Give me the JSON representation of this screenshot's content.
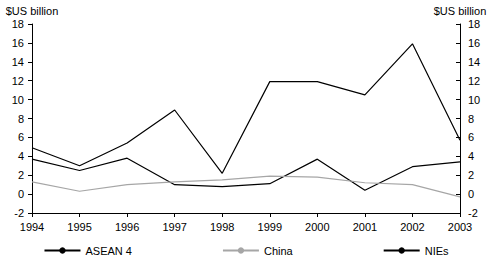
{
  "chart_data": {
    "type": "line",
    "ylabel": "$US billion",
    "y2label": "$US billion",
    "categories": [
      "1994",
      "1995",
      "1996",
      "1997",
      "1998",
      "1999",
      "2000",
      "2001",
      "2002",
      "2003"
    ],
    "series": [
      {
        "name": "ASEAN 4",
        "color": "#000000",
        "values": [
          3.7,
          2.5,
          3.8,
          1.0,
          0.8,
          1.1,
          3.7,
          0.4,
          2.9,
          3.4
        ]
      },
      {
        "name": "China",
        "color": "#a6a6a6",
        "values": [
          1.3,
          0.3,
          1.0,
          1.3,
          1.5,
          1.9,
          1.8,
          1.2,
          1.0,
          -0.3
        ]
      },
      {
        "name": "NIEs",
        "color": "#000000",
        "values": [
          4.9,
          3.0,
          5.4,
          8.9,
          2.2,
          11.9,
          11.9,
          10.5,
          15.9,
          5.7
        ]
      }
    ],
    "ylim": [
      -2,
      18
    ],
    "yticks": [
      -2,
      0,
      2,
      4,
      6,
      8,
      10,
      12,
      14,
      16,
      18
    ],
    "y2lim": [
      -2,
      18
    ],
    "y2ticks": [
      -2,
      0,
      2,
      4,
      6,
      8,
      10,
      12,
      14,
      16,
      18
    ],
    "grid": false,
    "legend": "bottom"
  }
}
